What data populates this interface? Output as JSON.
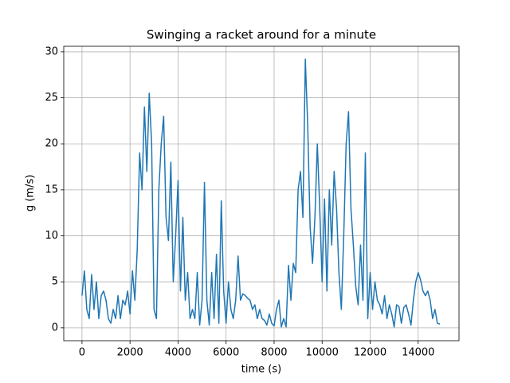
{
  "chart_data": {
    "type": "line",
    "title": "Swinging a racket around for a minute",
    "x_label": "time (s)",
    "y_label": "g (m/s)",
    "x": [
      0,
      100,
      200,
      300,
      400,
      500,
      600,
      700,
      800,
      900,
      1000,
      1100,
      1200,
      1300,
      1400,
      1500,
      1600,
      1700,
      1800,
      1900,
      2000,
      2100,
      2200,
      2300,
      2400,
      2500,
      2600,
      2700,
      2800,
      2900,
      3000,
      3100,
      3200,
      3300,
      3400,
      3500,
      3600,
      3700,
      3800,
      3900,
      4000,
      4100,
      4200,
      4300,
      4400,
      4500,
      4600,
      4700,
      4800,
      4900,
      5000,
      5100,
      5200,
      5300,
      5400,
      5500,
      5600,
      5700,
      5800,
      5900,
      6000,
      6100,
      6200,
      6300,
      6400,
      6500,
      6600,
      6700,
      6800,
      6900,
      7000,
      7100,
      7200,
      7300,
      7400,
      7500,
      7600,
      7700,
      7800,
      7900,
      8000,
      8100,
      8200,
      8300,
      8400,
      8500,
      8600,
      8700,
      8800,
      8900,
      9000,
      9100,
      9200,
      9300,
      9400,
      9500,
      9600,
      9700,
      9800,
      9900,
      10000,
      10100,
      10200,
      10300,
      10400,
      10500,
      10600,
      10700,
      10800,
      10900,
      11000,
      11100,
      11200,
      11300,
      11400,
      11500,
      11600,
      11700,
      11800,
      11900,
      12000,
      12100,
      12200,
      12300,
      12400,
      12500,
      12600,
      12700,
      12800,
      12900,
      13000,
      13100,
      13200,
      13300,
      13400,
      13500,
      13600,
      13700,
      13800,
      13900,
      14000,
      14100,
      14200,
      14300,
      14400,
      14500,
      14600,
      14700,
      14800,
      14900
    ],
    "series": [
      {
        "name": "g",
        "color": "#1f77b4",
        "values": [
          3.5,
          6.2,
          2,
          1,
          5.8,
          2,
          5,
          1,
          3.5,
          4,
          3,
          1,
          0.5,
          2,
          1,
          3.5,
          1,
          3,
          2.5,
          4,
          1.5,
          6.2,
          3,
          8.5,
          19,
          15,
          24,
          17,
          25.5,
          20,
          2,
          1,
          15,
          20,
          23,
          12,
          9.5,
          18,
          5,
          10,
          16,
          4,
          12,
          3,
          6,
          1,
          2,
          1,
          6,
          0.3,
          3,
          15.8,
          3,
          0.3,
          6,
          1,
          8,
          0.5,
          13.8,
          4,
          0.5,
          5,
          2,
          1,
          3,
          7.8,
          3,
          3.7,
          3.5,
          3.2,
          3,
          2,
          2.5,
          1,
          2,
          1,
          0.8,
          0.3,
          1.5,
          0.5,
          0.2,
          2,
          3,
          0.1,
          1,
          0.1,
          6.8,
          3,
          7,
          6,
          15,
          17,
          12,
          29.2,
          22,
          11,
          7,
          12,
          20,
          13,
          5,
          14,
          4,
          15,
          9,
          17,
          13,
          6,
          2,
          10,
          20,
          23.5,
          13,
          9,
          4.5,
          2.5,
          9,
          3,
          19,
          1,
          6,
          2,
          5,
          3,
          2.5,
          1.5,
          3.5,
          1,
          2.5,
          1.5,
          0.1,
          2.5,
          2.3,
          0.5,
          2.2,
          2.5,
          1.5,
          0.3,
          3,
          5,
          6,
          5.2,
          4,
          3.5,
          4,
          3,
          1,
          2,
          0.5,
          0.4
        ]
      }
    ],
    "xlim": [
      -760,
      15700
    ],
    "ylim": [
      -1.4,
      30.6
    ],
    "xticks": [
      0,
      2000,
      4000,
      6000,
      8000,
      10000,
      12000,
      14000
    ],
    "yticks": [
      0,
      5,
      10,
      15,
      20,
      25,
      30
    ],
    "grid": true
  }
}
